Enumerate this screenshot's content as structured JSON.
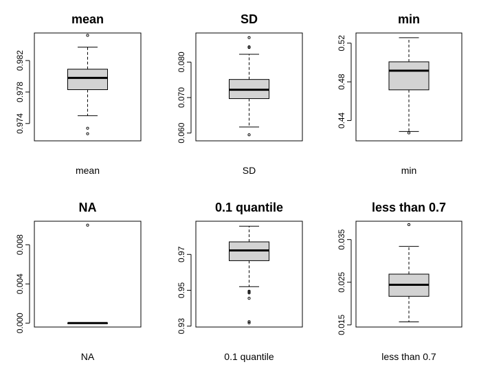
{
  "chart_data": [
    {
      "type": "boxplot",
      "title": "mean",
      "xlabel": "mean",
      "ylim": [
        0.9718,
        0.9855
      ],
      "yticks": [
        0.974,
        0.978,
        0.982
      ],
      "tick_labels": [
        "0.974",
        "0.978",
        "0.982"
      ],
      "box": {
        "whisker_low": 0.975,
        "q1": 0.9783,
        "median": 0.9798,
        "q3": 0.9809,
        "whisker_high": 0.9837
      },
      "outliers": [
        0.9852,
        0.9734,
        0.9727
      ]
    },
    {
      "type": "boxplot",
      "title": "SD",
      "xlabel": "SD",
      "ylim": [
        0.0578,
        0.0882
      ],
      "yticks": [
        0.06,
        0.07,
        0.08
      ],
      "tick_labels": [
        "0.060",
        "0.070",
        "0.080"
      ],
      "box": {
        "whisker_low": 0.0617,
        "q1": 0.0697,
        "median": 0.0722,
        "q3": 0.0751,
        "whisker_high": 0.0822
      },
      "outliers": [
        0.0869,
        0.0841,
        0.0843,
        0.0595
      ]
    },
    {
      "type": "boxplot",
      "title": "min",
      "xlabel": "min",
      "ylim": [
        0.419,
        0.5305
      ],
      "yticks": [
        0.44,
        0.48,
        0.52
      ],
      "tick_labels": [
        "0.44",
        "0.48",
        "0.52"
      ],
      "box": {
        "whisker_low": 0.4287,
        "q1": 0.4717,
        "median": 0.4915,
        "q3": 0.5007,
        "whisker_high": 0.5256
      },
      "outliers": [
        0.4272
      ]
    },
    {
      "type": "boxplot",
      "title": "NA",
      "xlabel": "NA",
      "ylim": [
        -0.0004,
        0.0104
      ],
      "yticks": [
        0.0,
        0.004,
        0.008
      ],
      "tick_labels": [
        "0.000",
        "0.004",
        "0.008"
      ],
      "box": {
        "whisker_low": 0,
        "q1": 0,
        "median": 0,
        "q3": 0,
        "whisker_high": 0
      },
      "outliers": [
        0.01
      ]
    },
    {
      "type": "boxplot",
      "title": "0.1 quantile",
      "xlabel": "0.1 quantile",
      "ylim": [
        0.9295,
        0.9885
      ],
      "yticks": [
        0.93,
        0.95,
        0.97
      ],
      "tick_labels": [
        "0.93",
        "0.95",
        "0.97"
      ],
      "box": {
        "whisker_low": 0.952,
        "q1": 0.9665,
        "median": 0.9722,
        "q3": 0.977,
        "whisker_high": 0.9857
      },
      "outliers": [
        0.9495,
        0.949,
        0.9485,
        0.9455,
        0.9325,
        0.9318
      ]
    },
    {
      "type": "boxplot",
      "title": "less than 0.7",
      "xlabel": "less than 0.7",
      "ylim": [
        0.0145,
        0.0393
      ],
      "yticks": [
        0.015,
        0.025,
        0.035
      ],
      "tick_labels": [
        "0.015",
        "0.025",
        "0.035"
      ],
      "box": {
        "whisker_low": 0.0157,
        "q1": 0.0217,
        "median": 0.0244,
        "q3": 0.0269,
        "whisker_high": 0.0334
      },
      "outliers": [
        0.0385
      ]
    }
  ]
}
